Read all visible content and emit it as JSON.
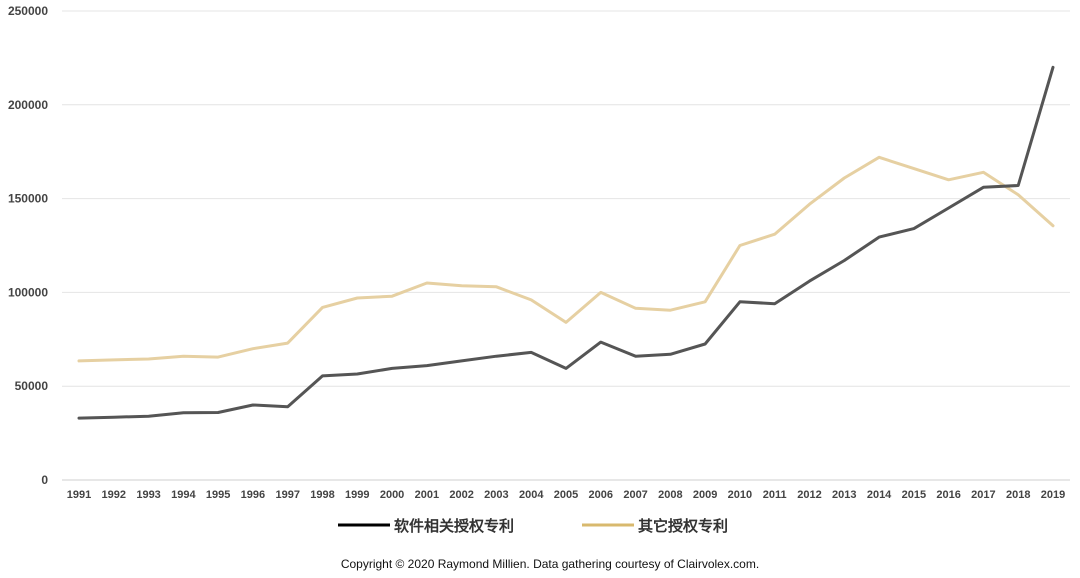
{
  "chart_data": {
    "type": "line",
    "title": "",
    "xlabel": "",
    "ylabel": "",
    "ylim": [
      0,
      250000
    ],
    "yticks": [
      0,
      50000,
      100000,
      150000,
      200000,
      250000
    ],
    "grid": "horizontal",
    "legend": "bottom",
    "x": [
      "1991",
      "1992",
      "1993",
      "1994",
      "1995",
      "1996",
      "1997",
      "1998",
      "1999",
      "2000",
      "2001",
      "2002",
      "2003",
      "2004",
      "2005",
      "2006",
      "2007",
      "2008",
      "2009",
      "2010",
      "2011",
      "2012",
      "2013",
      "2014",
      "2015",
      "2016",
      "2017",
      "2018",
      "2019"
    ],
    "series": [
      {
        "name": "软件相关授权专利",
        "color": "#555555",
        "legend_color": "#000000",
        "values": [
          33000,
          33500,
          34000,
          35800,
          36000,
          40000,
          39000,
          55500,
          56500,
          59500,
          61000,
          63500,
          66000,
          68000,
          59500,
          73500,
          66000,
          67000,
          72500,
          95000,
          94000,
          106000,
          117000,
          129500,
          134000,
          145000,
          156000,
          157000,
          220000
        ]
      },
      {
        "name": "其它授权专利",
        "color": "#e6d0a2",
        "legend_color": "#d8b96e",
        "values": [
          63500,
          64000,
          64500,
          66000,
          65500,
          70000,
          73000,
          92000,
          97000,
          98000,
          105000,
          103500,
          103000,
          96000,
          84000,
          100000,
          91500,
          90500,
          95000,
          125000,
          131000,
          147000,
          161000,
          172000,
          166000,
          160000,
          164000,
          152000,
          135500
        ]
      }
    ]
  },
  "footer": {
    "copyright": "Copyright © 2020 Raymond Millien.  Data gathering courtesy of Clairvolex.com."
  }
}
